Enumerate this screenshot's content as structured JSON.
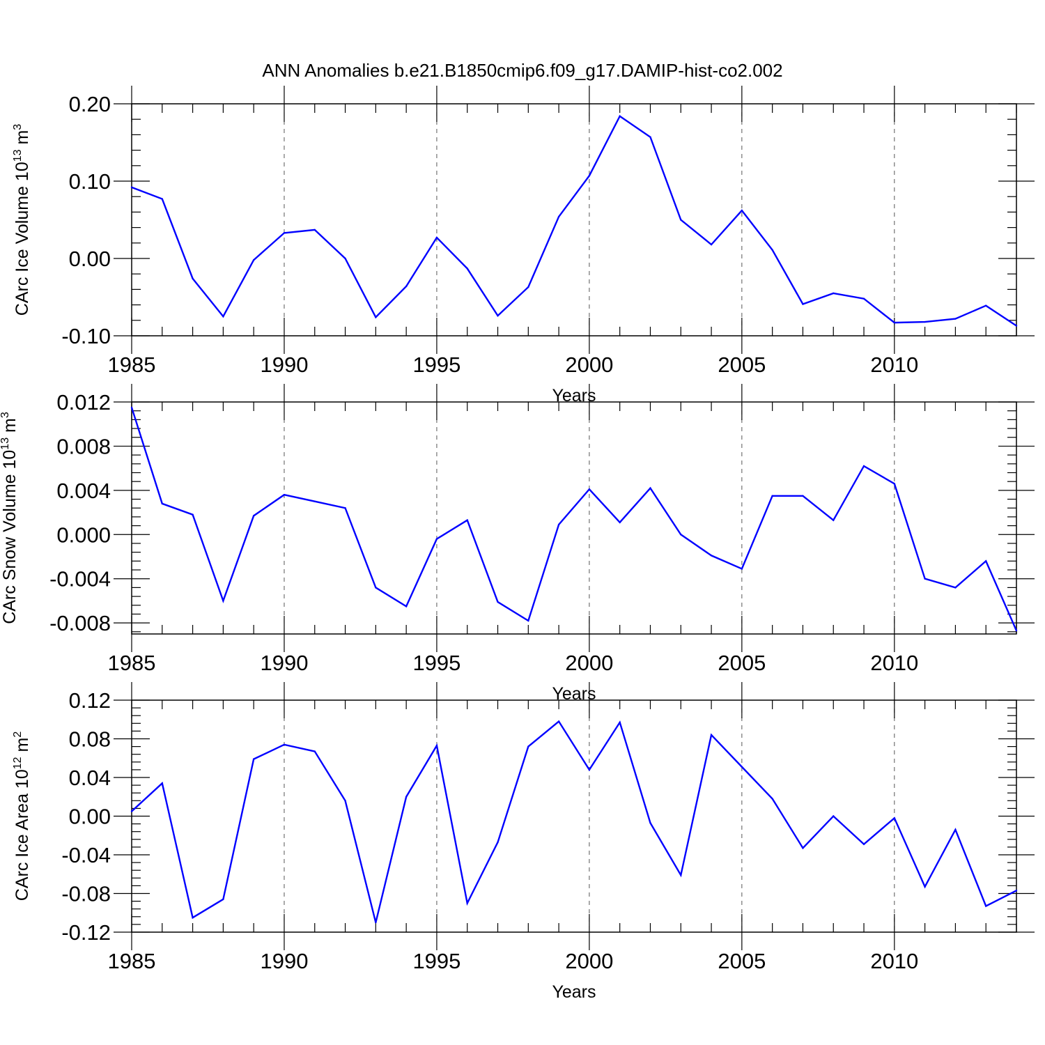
{
  "colors": {
    "series": "#0000ff",
    "axis": "#000000",
    "grid": "#555555"
  },
  "chart_data": {
    "title": "ANN Anomalies b.e21.B1850cmip6.f09_g17.DAMIP-hist-co2.002",
    "panels": [
      {
        "type": "line",
        "ylabel": "CArc Ice Volume 10",
        "ylabel_exp": "13",
        "ylabel_unit": " m",
        "ylabel_unit_exp": "3",
        "xlabel": "Years",
        "xlim": [
          1985,
          2014
        ],
        "ylim": [
          -0.1,
          0.2
        ],
        "yticks": [
          -0.1,
          0.0,
          0.1,
          0.2
        ],
        "ytick_labels": [
          "-0.10",
          "0.00",
          "0.10",
          "0.20"
        ],
        "xticks": [
          1985,
          1990,
          1995,
          2000,
          2005,
          2010
        ],
        "xtick_labels": [
          "1985",
          "1990",
          "1995",
          "2000",
          "2005",
          "2010"
        ],
        "grid": "vertical-dashed",
        "x": [
          1985,
          1986,
          1987,
          1988,
          1989,
          1990,
          1991,
          1992,
          1993,
          1994,
          1995,
          1996,
          1997,
          1998,
          1999,
          2000,
          2001,
          2002,
          2003,
          2004,
          2005,
          2006,
          2007,
          2008,
          2009,
          2010,
          2011,
          2012,
          2013,
          2014
        ],
        "values": [
          0.092,
          0.077,
          -0.026,
          -0.075,
          -0.002,
          0.033,
          0.037,
          0.0,
          -0.076,
          -0.036,
          0.027,
          -0.013,
          -0.074,
          -0.037,
          0.054,
          0.107,
          0.184,
          0.157,
          0.05,
          0.018,
          0.062,
          0.011,
          -0.059,
          -0.045,
          -0.052,
          -0.083,
          -0.082,
          -0.078,
          -0.061,
          -0.087
        ]
      },
      {
        "type": "line",
        "ylabel": "CArc Snow Volume 10",
        "ylabel_exp": "13",
        "ylabel_unit": " m",
        "ylabel_unit_exp": "3",
        "xlabel": "Years",
        "xlim": [
          1985,
          2014
        ],
        "ylim": [
          -0.009,
          0.012
        ],
        "yticks": [
          -0.008,
          -0.004,
          0.0,
          0.004,
          0.008,
          0.012
        ],
        "ytick_labels": [
          "-0.008",
          "-0.004",
          "0.000",
          "0.004",
          "0.008",
          "0.012"
        ],
        "xticks": [
          1985,
          1990,
          1995,
          2000,
          2005,
          2010
        ],
        "xtick_labels": [
          "1985",
          "1990",
          "1995",
          "2000",
          "2005",
          "2010"
        ],
        "grid": "vertical-dashed",
        "x": [
          1985,
          1986,
          1987,
          1988,
          1989,
          1990,
          1991,
          1992,
          1993,
          1994,
          1995,
          1996,
          1997,
          1998,
          1999,
          2000,
          2001,
          2002,
          2003,
          2004,
          2005,
          2006,
          2007,
          2008,
          2009,
          2010,
          2011,
          2012,
          2013,
          2014
        ],
        "values": [
          0.0115,
          0.0028,
          0.0018,
          -0.006,
          0.0017,
          0.0036,
          0.003,
          0.0024,
          -0.0048,
          -0.0065,
          -0.0004,
          0.0013,
          -0.0061,
          -0.0078,
          0.0009,
          0.0041,
          0.0011,
          0.0042,
          0.0,
          -0.0019,
          -0.0031,
          0.0035,
          0.0035,
          0.0013,
          0.0062,
          0.0046,
          -0.004,
          -0.0048,
          -0.0024,
          -0.0087
        ]
      },
      {
        "type": "line",
        "ylabel": "CArc Ice Area 10",
        "ylabel_exp": "12",
        "ylabel_unit": " m",
        "ylabel_unit_exp": "2",
        "xlabel": "Years",
        "xlim": [
          1985,
          2014
        ],
        "ylim": [
          -0.12,
          0.12
        ],
        "yticks": [
          -0.12,
          -0.08,
          -0.04,
          0.0,
          0.04,
          0.08,
          0.12
        ],
        "ytick_labels": [
          "-0.12",
          "-0.08",
          "-0.04",
          "0.00",
          "0.04",
          "0.08",
          "0.12"
        ],
        "xticks": [
          1985,
          1990,
          1995,
          2000,
          2005,
          2010
        ],
        "xtick_labels": [
          "1985",
          "1990",
          "1995",
          "2000",
          "2005",
          "2010"
        ],
        "grid": "vertical-dashed",
        "x": [
          1985,
          1986,
          1987,
          1988,
          1989,
          1990,
          1991,
          1992,
          1993,
          1994,
          1995,
          1996,
          1997,
          1998,
          1999,
          2000,
          2001,
          2002,
          2003,
          2004,
          2005,
          2006,
          2007,
          2008,
          2009,
          2010,
          2011,
          2012,
          2013,
          2014
        ],
        "values": [
          0.005,
          0.034,
          -0.105,
          -0.086,
          0.059,
          0.074,
          0.067,
          0.016,
          -0.11,
          0.02,
          0.073,
          -0.09,
          -0.027,
          0.072,
          0.098,
          0.048,
          0.097,
          -0.007,
          -0.061,
          0.084,
          0.051,
          0.018,
          -0.033,
          0.0,
          -0.029,
          -0.002,
          -0.073,
          -0.014,
          -0.093,
          -0.077
        ]
      }
    ]
  }
}
